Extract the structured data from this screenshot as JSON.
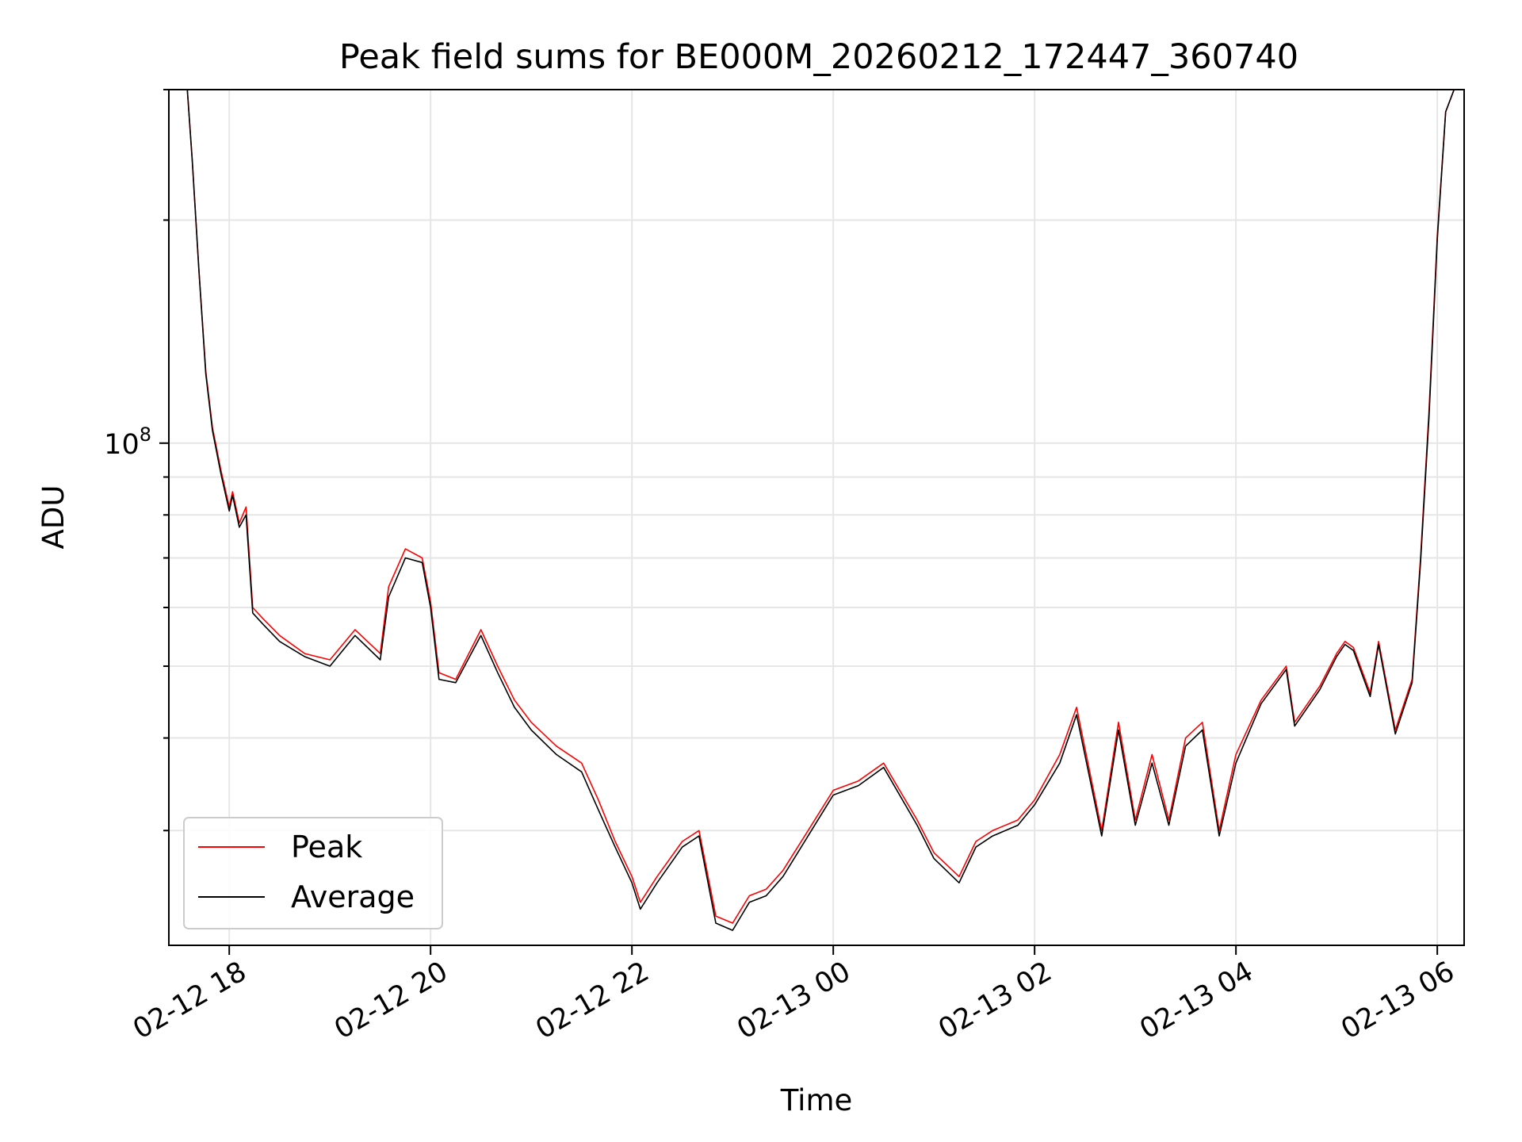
{
  "chart_data": {
    "type": "line",
    "title": "Peak field sums for BE000M_20260212_172447_360740",
    "xlabel": "Time",
    "ylabel": "ADU",
    "yscale": "log",
    "xlim": [
      "02-12 17:24",
      "02-13 06:16"
    ],
    "ylim": [
      21000000,
      300000000
    ],
    "grid": true,
    "legend": "lower-left",
    "x_ticks": [
      "02-12 18",
      "02-12 20",
      "02-12 22",
      "02-13 00",
      "02-13 02",
      "02-13 04",
      "02-13 06"
    ],
    "y_ticks": [
      {
        "label_base": "10",
        "label_exp": "8",
        "value": 100000000
      }
    ],
    "series": [
      {
        "name": "Peak",
        "color": "#ff0000",
        "x": [
          "02-12 17:24",
          "02-12 17:35",
          "02-12 17:38",
          "02-12 17:42",
          "02-12 17:46",
          "02-12 17:50",
          "02-12 17:55",
          "02-12 18:00",
          "02-12 18:02",
          "02-12 18:06",
          "02-12 18:10",
          "02-12 18:14",
          "02-12 18:20",
          "02-12 18:30",
          "02-12 18:45",
          "02-12 19:00",
          "02-12 19:15",
          "02-12 19:30",
          "02-12 19:35",
          "02-12 19:45",
          "02-12 19:55",
          "02-12 20:00",
          "02-12 20:05",
          "02-12 20:15",
          "02-12 20:30",
          "02-12 20:40",
          "02-12 20:50",
          "02-12 21:00",
          "02-12 21:15",
          "02-12 21:30",
          "02-12 21:40",
          "02-12 21:50",
          "02-12 22:00",
          "02-12 22:05",
          "02-12 22:15",
          "02-12 22:30",
          "02-12 22:40",
          "02-12 22:50",
          "02-12 23:00",
          "02-12 23:10",
          "02-12 23:20",
          "02-12 23:30",
          "02-12 23:45",
          "02-13 00:00",
          "02-13 00:15",
          "02-13 00:30",
          "02-13 00:50",
          "02-13 01:00",
          "02-13 01:15",
          "02-13 01:25",
          "02-13 01:35",
          "02-13 01:50",
          "02-13 02:00",
          "02-13 02:15",
          "02-13 02:25",
          "02-13 02:40",
          "02-13 02:50",
          "02-13 03:00",
          "02-13 03:10",
          "02-13 03:20",
          "02-13 03:30",
          "02-13 03:40",
          "02-13 03:50",
          "02-13 04:00",
          "02-13 04:15",
          "02-13 04:30",
          "02-13 04:35",
          "02-13 04:50",
          "02-13 05:00",
          "02-13 05:05",
          "02-13 05:10",
          "02-13 05:20",
          "02-13 05:25",
          "02-13 05:35",
          "02-13 05:45",
          "02-13 05:50",
          "02-13 05:55",
          "02-13 06:00",
          "02-13 06:05",
          "02-13 06:10"
        ],
        "values": [
          300000000,
          300000000,
          240000000,
          170000000,
          125000000,
          105000000,
          92000000,
          82000000,
          86000000,
          78000000,
          82000000,
          60000000,
          58000000,
          55000000,
          52000000,
          51000000,
          56000000,
          52000000,
          64000000,
          72000000,
          70000000,
          61000000,
          49000000,
          48000000,
          56000000,
          50000000,
          45000000,
          42000000,
          39000000,
          37000000,
          33000000,
          29000000,
          26000000,
          24000000,
          26000000,
          29000000,
          30000000,
          23000000,
          22500000,
          24500000,
          25000000,
          26500000,
          30000000,
          34000000,
          35000000,
          37000000,
          31000000,
          28000000,
          26000000,
          29000000,
          30000000,
          31000000,
          33000000,
          38000000,
          44000000,
          30000000,
          42000000,
          31000000,
          38000000,
          31000000,
          40000000,
          42000000,
          30000000,
          38000000,
          45000000,
          50000000,
          42000000,
          47000000,
          52000000,
          54000000,
          53000000,
          46000000,
          54000000,
          41000000,
          48000000,
          70000000,
          110000000,
          190000000,
          280000000,
          300000000
        ]
      },
      {
        "name": "Average",
        "color": "#000000",
        "x": [
          "02-12 17:24",
          "02-12 17:35",
          "02-12 17:38",
          "02-12 17:42",
          "02-12 17:46",
          "02-12 17:50",
          "02-12 17:55",
          "02-12 18:00",
          "02-12 18:02",
          "02-12 18:06",
          "02-12 18:10",
          "02-12 18:14",
          "02-12 18:20",
          "02-12 18:30",
          "02-12 18:45",
          "02-12 19:00",
          "02-12 19:15",
          "02-12 19:30",
          "02-12 19:35",
          "02-12 19:45",
          "02-12 19:55",
          "02-12 20:00",
          "02-12 20:05",
          "02-12 20:15",
          "02-12 20:30",
          "02-12 20:40",
          "02-12 20:50",
          "02-12 21:00",
          "02-12 21:15",
          "02-12 21:30",
          "02-12 21:40",
          "02-12 21:50",
          "02-12 22:00",
          "02-12 22:05",
          "02-12 22:15",
          "02-12 22:30",
          "02-12 22:40",
          "02-12 22:50",
          "02-12 23:00",
          "02-12 23:10",
          "02-12 23:20",
          "02-12 23:30",
          "02-12 23:45",
          "02-13 00:00",
          "02-13 00:15",
          "02-13 00:30",
          "02-13 00:50",
          "02-13 01:00",
          "02-13 01:15",
          "02-13 01:25",
          "02-13 01:35",
          "02-13 01:50",
          "02-13 02:00",
          "02-13 02:15",
          "02-13 02:25",
          "02-13 02:40",
          "02-13 02:50",
          "02-13 03:00",
          "02-13 03:10",
          "02-13 03:20",
          "02-13 03:30",
          "02-13 03:40",
          "02-13 03:50",
          "02-13 04:00",
          "02-13 04:15",
          "02-13 04:30",
          "02-13 04:35",
          "02-13 04:50",
          "02-13 05:00",
          "02-13 05:05",
          "02-13 05:10",
          "02-13 05:20",
          "02-13 05:25",
          "02-13 05:35",
          "02-13 05:45",
          "02-13 05:50",
          "02-13 05:55",
          "02-13 06:00",
          "02-13 06:05",
          "02-13 06:10"
        ],
        "values": [
          300000000,
          300000000,
          240000000,
          170000000,
          124000000,
          104000000,
          91000000,
          81000000,
          85000000,
          77000000,
          80000000,
          59000000,
          57000000,
          54000000,
          51500000,
          50000000,
          55000000,
          51000000,
          62000000,
          70000000,
          69000000,
          60000000,
          48000000,
          47500000,
          55000000,
          49000000,
          44000000,
          41000000,
          38000000,
          36000000,
          32000000,
          28500000,
          25500000,
          23500000,
          25500000,
          28500000,
          29500000,
          22500000,
          22000000,
          24000000,
          24500000,
          26000000,
          29500000,
          33500000,
          34500000,
          36500000,
          30500000,
          27500000,
          25500000,
          28500000,
          29500000,
          30500000,
          32500000,
          37000000,
          43000000,
          29500000,
          41000000,
          30500000,
          37000000,
          30500000,
          39000000,
          41000000,
          29500000,
          37000000,
          44500000,
          49500000,
          41500000,
          46500000,
          51500000,
          53500000,
          52500000,
          45500000,
          53500000,
          40500000,
          47500000,
          69000000,
          108000000,
          188000000,
          280000000,
          300000000
        ]
      }
    ]
  }
}
